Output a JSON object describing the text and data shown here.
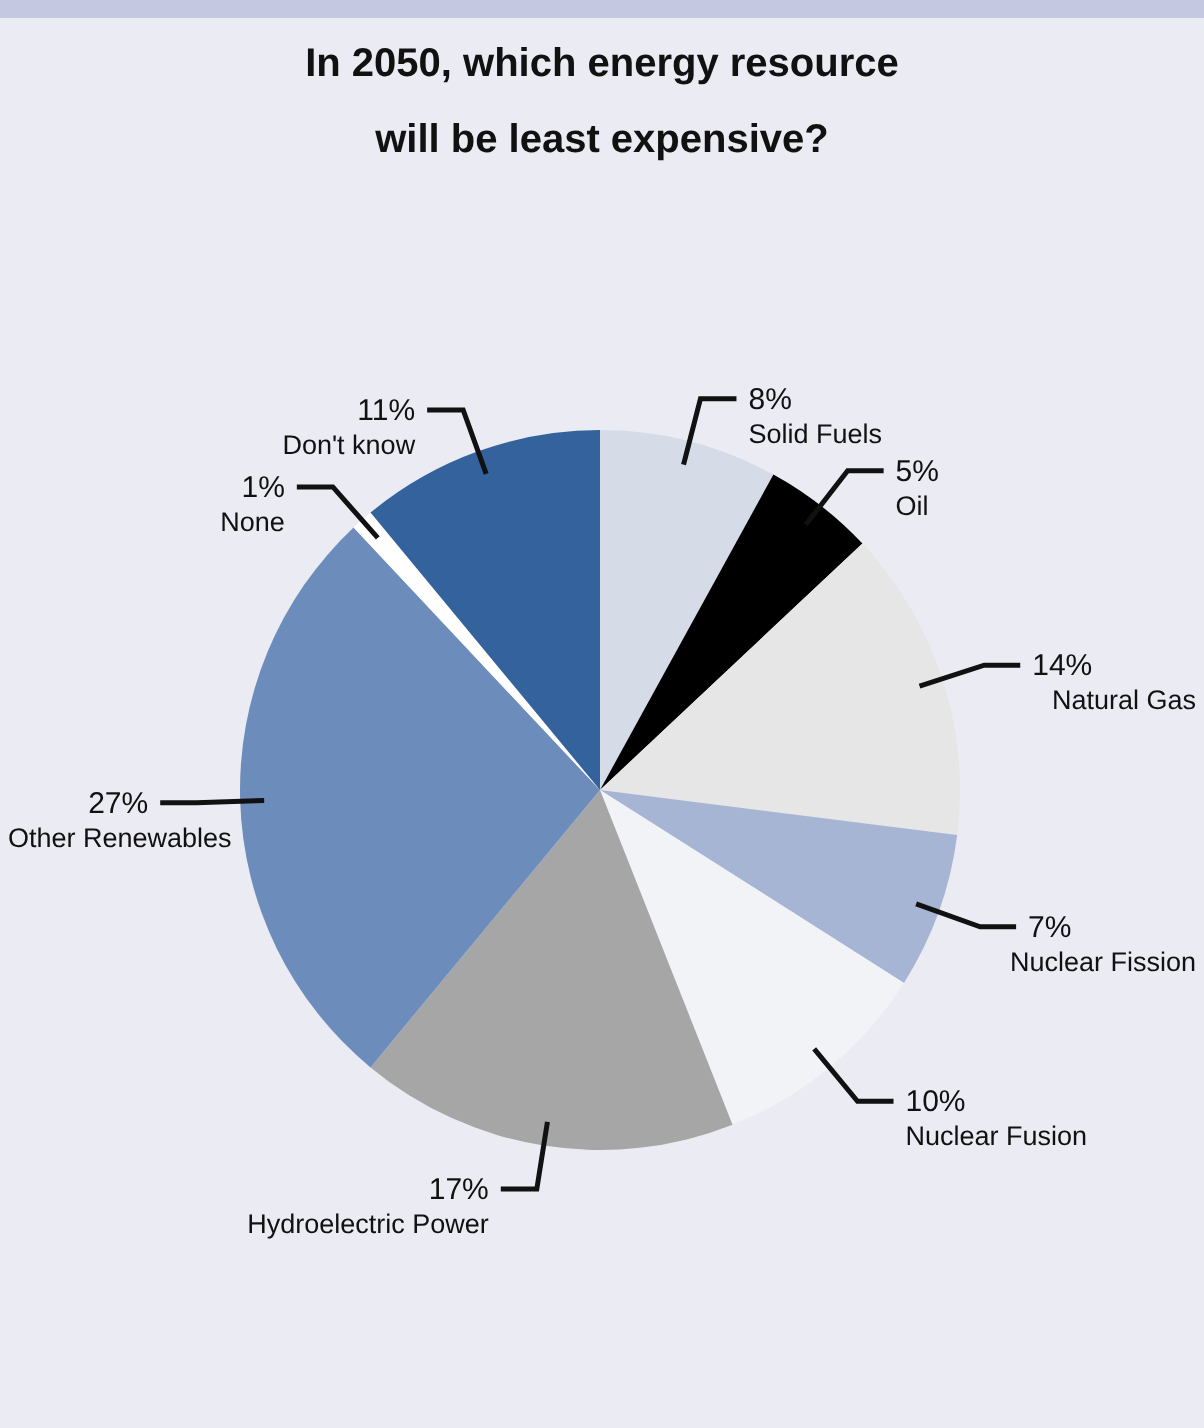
{
  "chart_data": {
    "type": "pie",
    "title": "In 2050, which energy resource will be least expensive?",
    "categories": [
      "Solid Fuels",
      "Oil",
      "Natural Gas",
      "Nuclear Fission",
      "Nuclear Fusion",
      "Hydroelectric Power",
      "Other Renewables",
      "None",
      "Don't know"
    ],
    "values": [
      8,
      5,
      14,
      7,
      10,
      17,
      27,
      1,
      11
    ],
    "value_labels": [
      "8%",
      "5%",
      "14%",
      "7%",
      "10%",
      "17%",
      "27%",
      "1%",
      "11%"
    ],
    "colors": [
      "#d5dce8",
      "#000000",
      "#e6e6e6",
      "#a7b5d5",
      "#f2f3f7",
      "#a6a6a6",
      "#6c8cbc",
      "#ffffff",
      "#33629c"
    ]
  }
}
